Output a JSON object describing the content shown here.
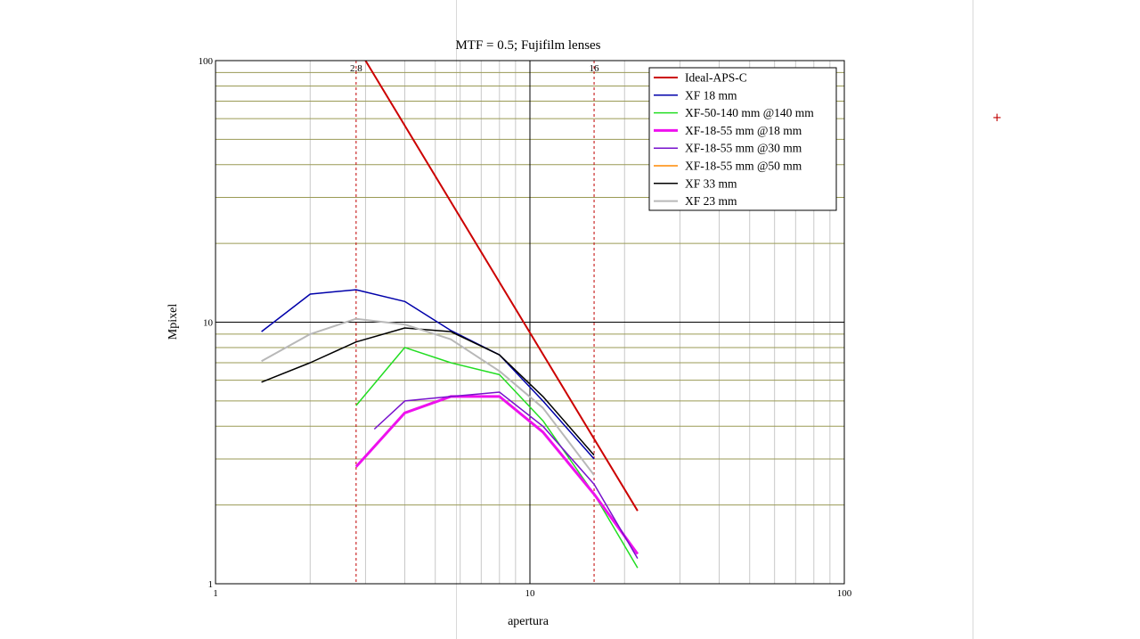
{
  "chart_data": {
    "type": "line",
    "title": "MTF = 0.5; Fujifilm lenses",
    "xlabel": "apertura",
    "ylabel": "Mpixel",
    "xscale": "log",
    "yscale": "log",
    "xlim": [
      1,
      100
    ],
    "ylim": [
      1,
      100
    ],
    "x_tick_labels": [
      "1",
      "10",
      "100"
    ],
    "y_tick_labels": [
      "1",
      "10",
      "100"
    ],
    "grid": true,
    "legend_position": "top-right",
    "reference_lines": [
      {
        "x": 2.8,
        "label": "2.8",
        "color": "#c00000",
        "style": "dashed"
      },
      {
        "x": 16,
        "label": "16",
        "color": "#c00000",
        "style": "dashed"
      }
    ],
    "series": [
      {
        "name": "Ideal-APS-C",
        "color": "#cc0000",
        "width": 2,
        "x": [
          3,
          22
        ],
        "y": [
          100,
          1.9
        ]
      },
      {
        "name": "XF 18 mm",
        "color": "#0000aa",
        "width": 1.5,
        "x": [
          1.4,
          2,
          2.8,
          4,
          5.6,
          8,
          11,
          16
        ],
        "y": [
          9.2,
          12.8,
          13.3,
          12.0,
          9.3,
          7.5,
          5.0,
          3.0
        ]
      },
      {
        "name": "XF-50-140 mm @140 mm",
        "color": "#22dd22",
        "width": 1.5,
        "x": [
          2.8,
          4,
          5.6,
          8,
          11,
          16,
          22
        ],
        "y": [
          4.8,
          8.0,
          7.0,
          6.3,
          4.2,
          2.2,
          1.15
        ]
      },
      {
        "name": "XF-18-55 mm @18 mm",
        "color": "#ee11ee",
        "width": 3,
        "x": [
          2.8,
          4,
          5.6,
          8,
          11,
          16,
          22
        ],
        "y": [
          2.8,
          4.5,
          5.2,
          5.2,
          3.8,
          2.2,
          1.3
        ]
      },
      {
        "name": "XF-18-55 mm @30 mm",
        "color": "#7711cc",
        "width": 1.5,
        "x": [
          3.2,
          4,
          5.6,
          8,
          11,
          16,
          22
        ],
        "y": [
          3.9,
          5.0,
          5.2,
          5.4,
          4.0,
          2.4,
          1.25
        ]
      },
      {
        "name": "XF-18-55 mm @50 mm",
        "color": "#ff8800",
        "width": 1.5,
        "x": [],
        "y": []
      },
      {
        "name": "XF 33 mm",
        "color": "#000000",
        "width": 1.5,
        "x": [
          1.4,
          2,
          2.8,
          4,
          5.6,
          8,
          11,
          16
        ],
        "y": [
          5.9,
          7.0,
          8.4,
          9.5,
          9.2,
          7.5,
          5.2,
          3.1
        ]
      },
      {
        "name": "XF 23 mm",
        "color": "#b8b8b8",
        "width": 2,
        "x": [
          1.4,
          2,
          2.8,
          4,
          5.6,
          8,
          11,
          16
        ],
        "y": [
          7.1,
          9.0,
          10.3,
          9.8,
          8.6,
          6.5,
          4.7,
          2.6
        ]
      }
    ]
  }
}
